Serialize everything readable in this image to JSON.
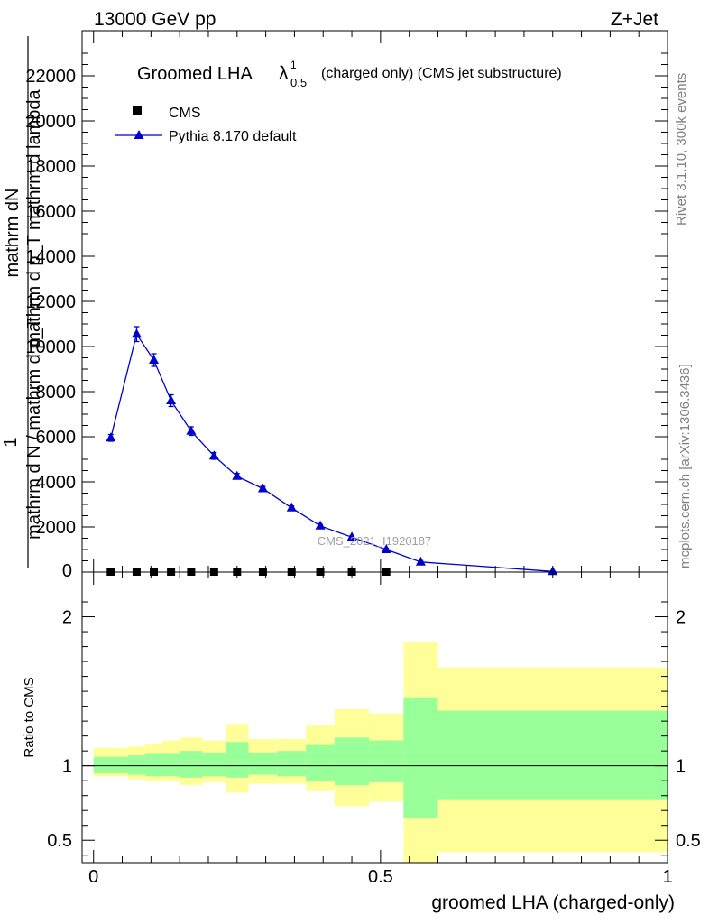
{
  "header": {
    "energy_label": "13000 GeV pp",
    "process_label": "Z+Jet"
  },
  "side_labels": {
    "rivet": "Rivet 3.1.10,  300k events",
    "site": "mcplots.cern.ch [arXiv:1306.3436]"
  },
  "colors": {
    "cms": "#000000",
    "pythia": "#0000cc",
    "band_inner": "#99ff99",
    "band_outer": "#ffff99"
  },
  "chart_data": [
    {
      "type": "line",
      "title_main": "Groomed LHA",
      "title_symbol": "λ",
      "title_sup": "1",
      "title_sub": "0.5",
      "title_rest": "(charged only) (CMS jet substructure)",
      "watermark": "CMS_2021_I1920187",
      "ylabel_main": "mathrm d^2N",
      "ylabel_denominator": "mathrm d p_T mathrm d lambda",
      "ylabel_prefix": "1",
      "ylabel_frac_top": "mathrm dN",
      "ylabel_frac_bottom": "mathrm d N / mathrm d p_T",
      "ylabel_lines": [
        "mathrm dN",
        "mathrm d p_T mathrm d lambda",
        "1",
        "mathrm d N / mathrm d p_T"
      ],
      "xlim": [
        -0.02,
        1.0
      ],
      "ylim": [
        0,
        24000
      ],
      "y_ticks": [
        2000,
        4000,
        6000,
        8000,
        10000,
        12000,
        14000,
        16000,
        18000,
        20000,
        22000
      ],
      "y_tick_labels": [
        "2000",
        "4000",
        "6000",
        "8000",
        "10000",
        "12000",
        "14000",
        "16000",
        "18000",
        "20000",
        "22000"
      ],
      "y_zero_label": "0",
      "legend": [
        {
          "name": "CMS",
          "marker": "square"
        },
        {
          "name": "Pythia 8.170 default",
          "marker": "triangle"
        }
      ],
      "series": [
        {
          "name": "Pythia 8.170 default",
          "x": [
            0.03,
            0.075,
            0.105,
            0.135,
            0.17,
            0.21,
            0.25,
            0.295,
            0.345,
            0.395,
            0.45,
            0.51,
            0.57,
            0.8
          ],
          "y": [
            5950,
            10550,
            9400,
            7600,
            6250,
            5150,
            4250,
            3700,
            2850,
            2050,
            1550,
            1000,
            450,
            30
          ],
          "yerr": [
            150,
            330,
            280,
            260,
            190,
            150,
            120,
            100,
            80,
            60,
            50,
            40,
            25,
            5
          ]
        },
        {
          "name": "CMS",
          "x": [
            0.03,
            0.075,
            0.105,
            0.135,
            0.17,
            0.21,
            0.25,
            0.295,
            0.345,
            0.395,
            0.45,
            0.51
          ],
          "y": [
            0,
            0,
            0,
            0,
            0,
            0,
            0,
            0,
            0,
            0,
            0,
            0
          ]
        }
      ]
    },
    {
      "type": "area",
      "ylabel": "Ratio to CMS",
      "xlabel": "groomed LHA (charged-only)",
      "xlim": [
        -0.02,
        1.0
      ],
      "ylim": [
        0.35,
        2.3
      ],
      "x_ticks": [
        0,
        0.5,
        1
      ],
      "x_tick_labels": [
        "0",
        "0.5",
        "1"
      ],
      "y_ticks": [
        0.5,
        1,
        2
      ],
      "y_tick_labels": [
        "0.5",
        "1",
        "2"
      ],
      "reference_line": 1,
      "bins": [
        {
          "lo": 0.0,
          "hi": 0.06,
          "inner": [
            0.95,
            1.06
          ],
          "outer": [
            0.93,
            1.12
          ]
        },
        {
          "lo": 0.06,
          "hi": 0.09,
          "inner": [
            0.94,
            1.07
          ],
          "outer": [
            0.91,
            1.13
          ]
        },
        {
          "lo": 0.09,
          "hi": 0.12,
          "inner": [
            0.93,
            1.08
          ],
          "outer": [
            0.9,
            1.15
          ]
        },
        {
          "lo": 0.12,
          "hi": 0.15,
          "inner": [
            0.93,
            1.08
          ],
          "outer": [
            0.9,
            1.17
          ]
        },
        {
          "lo": 0.15,
          "hi": 0.19,
          "inner": [
            0.92,
            1.1
          ],
          "outer": [
            0.87,
            1.19
          ]
        },
        {
          "lo": 0.19,
          "hi": 0.23,
          "inner": [
            0.93,
            1.09
          ],
          "outer": [
            0.89,
            1.17
          ]
        },
        {
          "lo": 0.23,
          "hi": 0.27,
          "inner": [
            0.92,
            1.16
          ],
          "outer": [
            0.82,
            1.28
          ]
        },
        {
          "lo": 0.27,
          "hi": 0.32,
          "inner": [
            0.94,
            1.09
          ],
          "outer": [
            0.88,
            1.18
          ]
        },
        {
          "lo": 0.32,
          "hi": 0.37,
          "inner": [
            0.93,
            1.1
          ],
          "outer": [
            0.88,
            1.18
          ]
        },
        {
          "lo": 0.37,
          "hi": 0.42,
          "inner": [
            0.9,
            1.14
          ],
          "outer": [
            0.83,
            1.27
          ]
        },
        {
          "lo": 0.42,
          "hi": 0.48,
          "inner": [
            0.87,
            1.19
          ],
          "outer": [
            0.73,
            1.38
          ]
        },
        {
          "lo": 0.48,
          "hi": 0.54,
          "inner": [
            0.89,
            1.17
          ],
          "outer": [
            0.76,
            1.35
          ]
        },
        {
          "lo": 0.54,
          "hi": 0.6,
          "inner": [
            0.65,
            1.46
          ],
          "outer": [
            0.34,
            1.83
          ]
        },
        {
          "lo": 0.6,
          "hi": 1.0,
          "inner": [
            0.77,
            1.37
          ],
          "outer": [
            0.42,
            1.66
          ]
        }
      ]
    }
  ]
}
